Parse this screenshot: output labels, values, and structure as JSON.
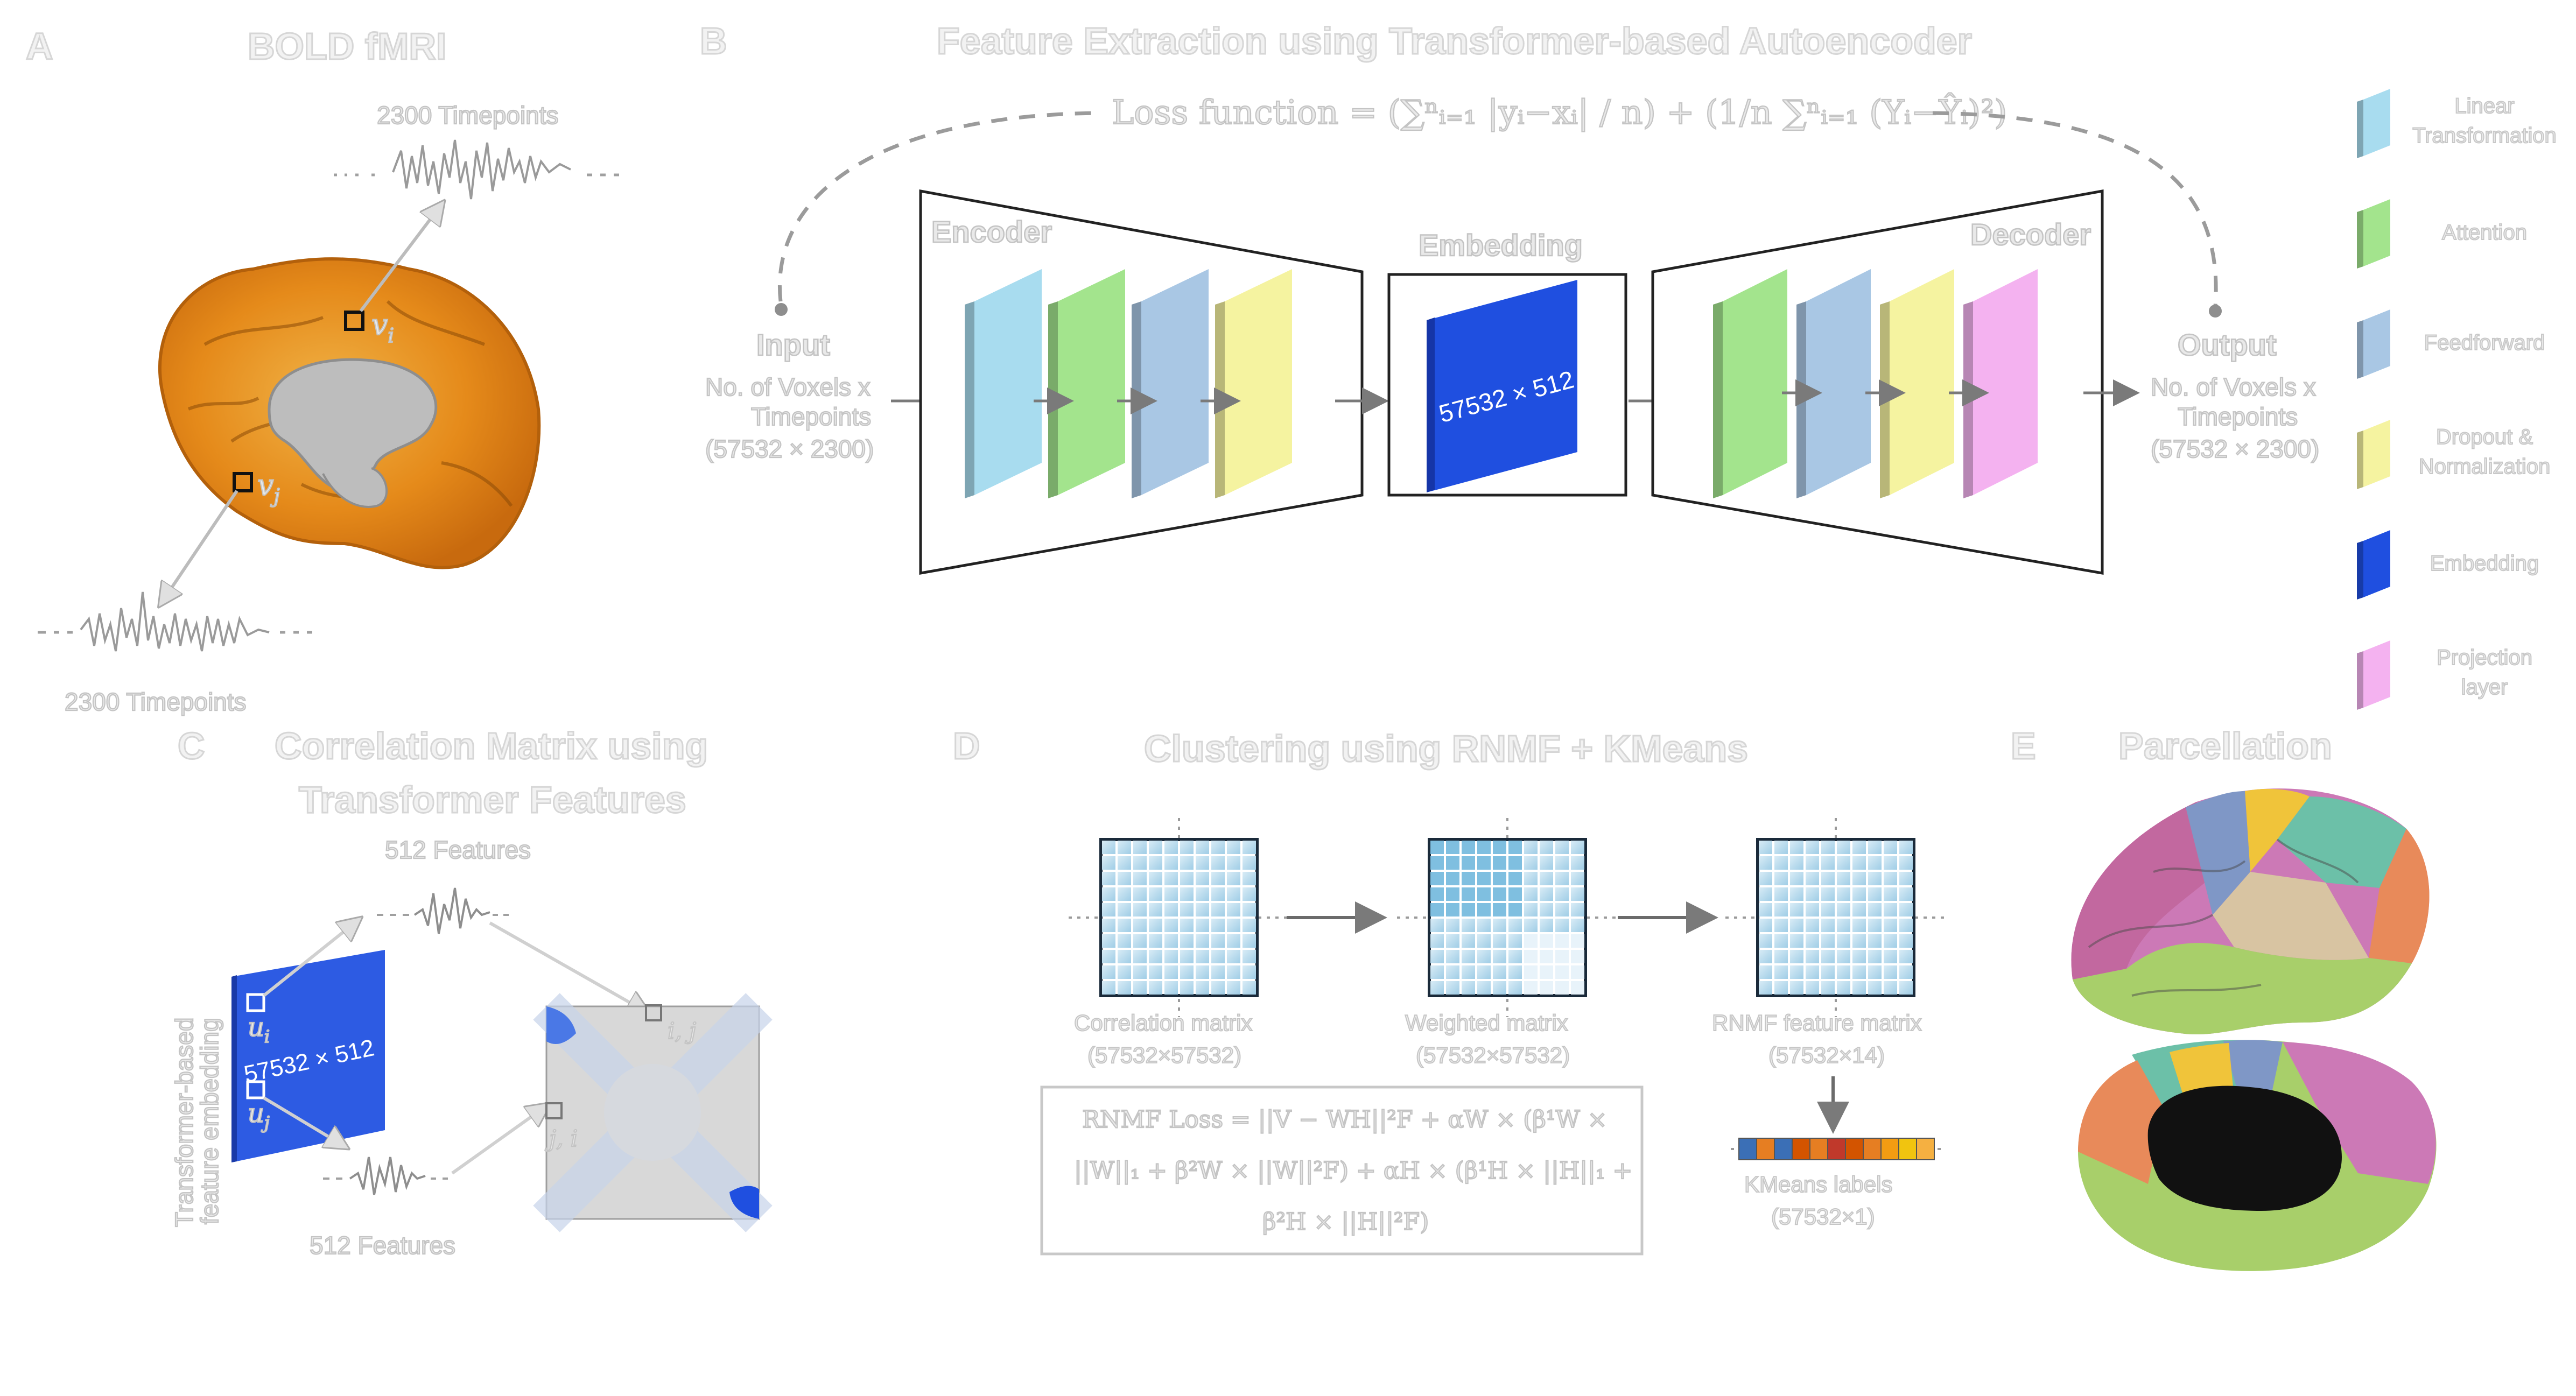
{
  "panels": {
    "a": {
      "letter": "A",
      "title": "BOLD fMRI",
      "timepoints_top": "2300 Timepoints",
      "timepoints_bottom": "2300 Timepoints",
      "voxel_i": "v",
      "voxel_i_sub": "i",
      "voxel_j": "v",
      "voxel_j_sub": "j"
    },
    "b": {
      "letter": "B",
      "title": "Feature Extraction using Transformer-based Autoencoder",
      "loss_function": "Loss function = (∑ⁿᵢ₌₁ |yᵢ−xᵢ| / n) + (1/n ∑ⁿᵢ₌₁ (Yᵢ−Ŷᵢ)²)",
      "input_title": "Input",
      "input_line1": "No. of Voxels x",
      "input_line2": "Timepoints",
      "input_line3": "(57532 × 2300)",
      "encoder": "Encoder",
      "embedding": "Embedding",
      "embedding_dim": "57532 × 512",
      "decoder": "Decoder",
      "output_title": "Output",
      "output_line1": "No. of Voxels x",
      "output_line2": "Timepoints",
      "output_line3": "(57532 × 2300)"
    },
    "c": {
      "letter": "C",
      "title_line1": "Correlation Matrix using",
      "title_line2": "Transformer Features",
      "features_top": "512 Features",
      "features_bottom": "512 Features",
      "side_line1": "Transformer-based",
      "side_line2": "feature embedding",
      "embedding_dim": "57532 × 512",
      "u_i": "u",
      "u_i_sub": "i",
      "u_j": "u",
      "u_j_sub": "j",
      "cell_ij": "i, j",
      "cell_ji": "j, i"
    },
    "d": {
      "letter": "D",
      "title": "Clustering using RNMF + KMeans",
      "corr_label": "Correlation matrix",
      "corr_size": "(57532×57532)",
      "weighted_label": "Weighted matrix",
      "weighted_size": "(57532×57532)",
      "rnmf_label": "RNMF feature matrix",
      "rnmf_size": "(57532×14)",
      "kmeans_label": "KMeans labels",
      "kmeans_size": "(57532×1)",
      "loss_line1": "RNMF Loss = ||V − WH||²F + αW × (β¹W ×",
      "loss_line2": "||W||₁ + β²W × ||W||²F) + αH × (β¹H × ||H||₁ +",
      "loss_line3": "β²H × ||H||²F)",
      "kmeans_colors": [
        "#3b6fb6",
        "#e67e22",
        "#3b6fb6",
        "#d35400",
        "#e67e22",
        "#c0392b",
        "#d35400",
        "#e67e22",
        "#f39c12",
        "#f1c40f",
        "#f5b041"
      ]
    },
    "e": {
      "letter": "E",
      "title": "Parcellation"
    }
  },
  "legend": [
    {
      "label": "Linear Transformation",
      "line1": "Linear",
      "line2": "Transformation",
      "color": "#a8dcef"
    },
    {
      "label": "Attention",
      "line1": "Attention",
      "line2": "",
      "color": "#a3e48d"
    },
    {
      "label": "Feedforward",
      "line1": "Feedforward",
      "line2": "",
      "color": "#a9c7e4"
    },
    {
      "label": "Dropout & Normalization",
      "line1": "Dropout &",
      "line2": "Normalization",
      "color": "#f5f3a0"
    },
    {
      "label": "Embedding",
      "line1": "Embedding",
      "line2": "",
      "color": "#1f4fe0"
    },
    {
      "label": "Projection layer",
      "line1": "Projection",
      "line2": "layer",
      "color": "#f4b2f0"
    }
  ]
}
